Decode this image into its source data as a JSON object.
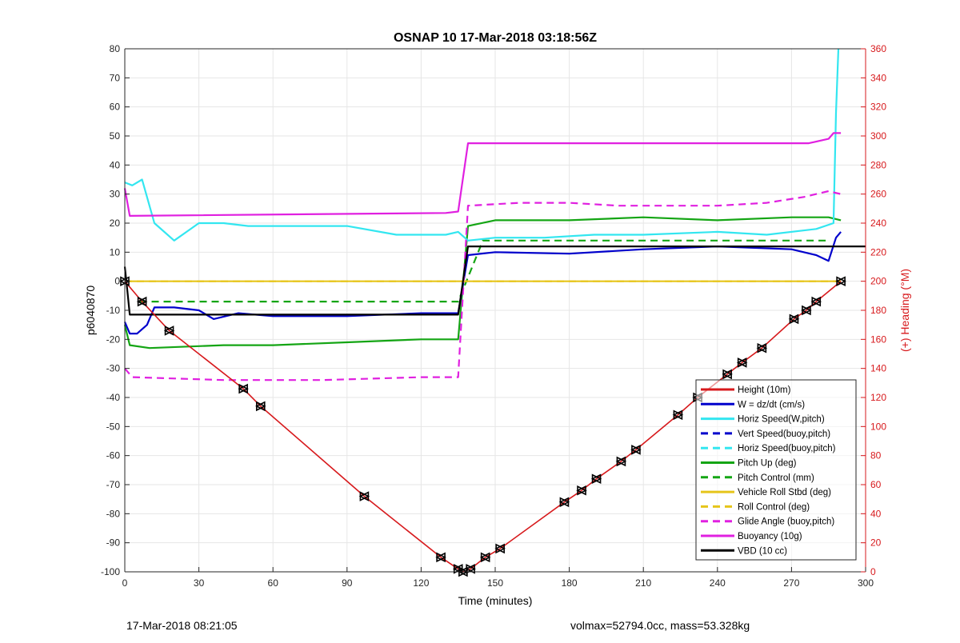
{
  "chart_data": {
    "type": "line",
    "title": "OSNAP 10 17-Mar-2018 03:18:56Z",
    "xlabel": "Time (minutes)",
    "ylabel": "p6040870",
    "y2label": "(+) Heading (°M)",
    "xlim": [
      0,
      300
    ],
    "ylim": [
      -100,
      80
    ],
    "y2lim": [
      0,
      360
    ],
    "xticks": [
      0,
      30,
      60,
      90,
      120,
      150,
      180,
      210,
      240,
      270,
      300
    ],
    "yticks": [
      -100,
      -90,
      -80,
      -70,
      -60,
      -50,
      -40,
      -30,
      -20,
      -10,
      0,
      10,
      20,
      30,
      40,
      50,
      60,
      70,
      80
    ],
    "y2ticks": [
      0,
      20,
      40,
      60,
      80,
      100,
      120,
      140,
      160,
      180,
      200,
      220,
      240,
      260,
      280,
      300,
      320,
      340,
      360
    ],
    "grid": true,
    "legend_position": "bottom-right",
    "colors": {
      "height": "#d7191c",
      "w": "#0000cc",
      "horiz_speed_w": "#33e6f0",
      "vert_speed_buoy": "#0000cc",
      "horiz_speed_buoy": "#33e6f0",
      "pitch_up": "#14a514",
      "pitch_control": "#14a514",
      "roll": "#e6c51a",
      "roll_control": "#e6c51a",
      "glide_angle": "#e020e0",
      "buoyancy": "#e020e0",
      "vbd": "#000000",
      "heading": "#e00000",
      "right_axis": "#d7191c"
    },
    "legend": [
      {
        "name": "Height (10m)",
        "key": "height",
        "dash": false
      },
      {
        "name": "W = dz/dt (cm/s)",
        "key": "w",
        "dash": false
      },
      {
        "name": "Horiz Speed(W,pitch)",
        "key": "horiz_speed_w",
        "dash": false
      },
      {
        "name": "Vert Speed(buoy,pitch)",
        "key": "vert_speed_buoy",
        "dash": true
      },
      {
        "name": "Horiz Speed(buoy,pitch)",
        "key": "horiz_speed_buoy",
        "dash": true
      },
      {
        "name": "Pitch Up (deg)",
        "key": "pitch_up",
        "dash": false
      },
      {
        "name": "Pitch Control (mm)",
        "key": "pitch_control",
        "dash": true
      },
      {
        "name": "Vehicle Roll Stbd (deg)",
        "key": "roll",
        "dash": false
      },
      {
        "name": "Roll Control (deg)",
        "key": "roll_control",
        "dash": true
      },
      {
        "name": "Glide Angle (buoy,pitch)",
        "key": "glide_angle",
        "dash": true
      },
      {
        "name": "Buoyancy (10g)",
        "key": "buoyancy",
        "dash": false
      },
      {
        "name": "VBD (10 cc)",
        "key": "vbd",
        "dash": false
      }
    ],
    "series": [
      {
        "key": "height",
        "points": [
          [
            0,
            0
          ],
          [
            7,
            -7
          ],
          [
            18,
            -17
          ],
          [
            48,
            -37
          ],
          [
            55,
            -43
          ],
          [
            97,
            -74
          ],
          [
            128,
            -95
          ],
          [
            135,
            -99
          ],
          [
            137,
            -100
          ],
          [
            140,
            -99
          ],
          [
            146,
            -95
          ],
          [
            152,
            -92
          ],
          [
            178,
            -76
          ],
          [
            185,
            -72
          ],
          [
            191,
            -68
          ],
          [
            201,
            -62
          ],
          [
            207,
            -58
          ],
          [
            224,
            -46
          ],
          [
            232,
            -40
          ],
          [
            244,
            -32
          ],
          [
            250,
            -28
          ],
          [
            258,
            -23
          ],
          [
            271,
            -13
          ],
          [
            276,
            -10
          ],
          [
            280,
            -7
          ],
          [
            290,
            0
          ]
        ]
      },
      {
        "key": "vbd",
        "points": [
          [
            0,
            5
          ],
          [
            1,
            -3
          ],
          [
            2,
            -11.5
          ],
          [
            135,
            -11.5
          ],
          [
            139,
            12
          ],
          [
            300,
            12
          ]
        ]
      },
      {
        "key": "buoyancy",
        "points": [
          [
            0,
            32
          ],
          [
            2,
            22.5
          ],
          [
            130,
            23.5
          ],
          [
            135,
            24
          ],
          [
            139,
            47.5
          ],
          [
            277,
            47.5
          ],
          [
            285,
            49
          ],
          [
            287,
            51
          ],
          [
            290,
            51
          ]
        ]
      },
      {
        "key": "w",
        "points": [
          [
            0,
            -14
          ],
          [
            2,
            -18
          ],
          [
            5,
            -18
          ],
          [
            9,
            -15
          ],
          [
            12,
            -9
          ],
          [
            20,
            -9
          ],
          [
            30,
            -10
          ],
          [
            36,
            -13
          ],
          [
            46,
            -11
          ],
          [
            60,
            -12
          ],
          [
            90,
            -12
          ],
          [
            120,
            -11
          ],
          [
            135,
            -11
          ],
          [
            139,
            9
          ],
          [
            150,
            10
          ],
          [
            180,
            9.5
          ],
          [
            210,
            11
          ],
          [
            240,
            12
          ],
          [
            270,
            11
          ],
          [
            280,
            9
          ],
          [
            285,
            7
          ],
          [
            288,
            15
          ],
          [
            290,
            17
          ]
        ]
      },
      {
        "key": "horiz_speed_w",
        "points": [
          [
            0,
            34
          ],
          [
            3,
            33
          ],
          [
            7,
            35
          ],
          [
            12,
            20
          ],
          [
            20,
            14
          ],
          [
            25,
            17
          ],
          [
            30,
            20
          ],
          [
            40,
            20
          ],
          [
            50,
            19
          ],
          [
            70,
            19
          ],
          [
            90,
            19
          ],
          [
            110,
            16
          ],
          [
            130,
            16
          ],
          [
            135,
            17
          ],
          [
            139,
            14
          ],
          [
            150,
            15
          ],
          [
            170,
            15
          ],
          [
            190,
            16
          ],
          [
            210,
            16
          ],
          [
            240,
            17
          ],
          [
            260,
            16
          ],
          [
            280,
            18
          ],
          [
            287,
            20
          ],
          [
            288,
            58
          ],
          [
            289,
            80
          ]
        ]
      },
      {
        "key": "pitch_up",
        "points": [
          [
            0,
            -15
          ],
          [
            2,
            -22
          ],
          [
            10,
            -23
          ],
          [
            40,
            -22
          ],
          [
            60,
            -22
          ],
          [
            90,
            -21
          ],
          [
            120,
            -20
          ],
          [
            135,
            -20
          ],
          [
            139,
            19
          ],
          [
            150,
            21
          ],
          [
            180,
            21
          ],
          [
            210,
            22
          ],
          [
            240,
            21
          ],
          [
            270,
            22
          ],
          [
            285,
            22
          ],
          [
            290,
            21
          ]
        ]
      },
      {
        "key": "pitch_control",
        "dash": true,
        "points": [
          [
            6,
            -7
          ],
          [
            135,
            -7
          ],
          [
            145,
            14
          ],
          [
            285,
            14
          ]
        ]
      },
      {
        "key": "roll",
        "points": [
          [
            1,
            0
          ],
          [
            135,
            0
          ],
          [
            139,
            0
          ],
          [
            290,
            0
          ]
        ]
      },
      {
        "key": "roll_control",
        "dash": true,
        "points": [
          [
            0,
            0
          ],
          [
            135,
            0
          ],
          [
            139,
            0
          ],
          [
            290,
            0
          ]
        ]
      },
      {
        "key": "glide_angle",
        "dash": true,
        "points": [
          [
            0,
            -30
          ],
          [
            3,
            -33
          ],
          [
            40,
            -34
          ],
          [
            80,
            -34
          ],
          [
            120,
            -33
          ],
          [
            135,
            -33
          ],
          [
            139,
            26
          ],
          [
            160,
            27
          ],
          [
            180,
            27
          ],
          [
            200,
            26
          ],
          [
            220,
            26
          ],
          [
            240,
            26
          ],
          [
            260,
            27
          ],
          [
            275,
            29
          ],
          [
            285,
            31
          ],
          [
            290,
            30
          ]
        ]
      }
    ]
  },
  "footer": {
    "left": "17-Mar-2018 08:21:05",
    "right": "volmax=52794.0cc, mass=53.328kg"
  }
}
